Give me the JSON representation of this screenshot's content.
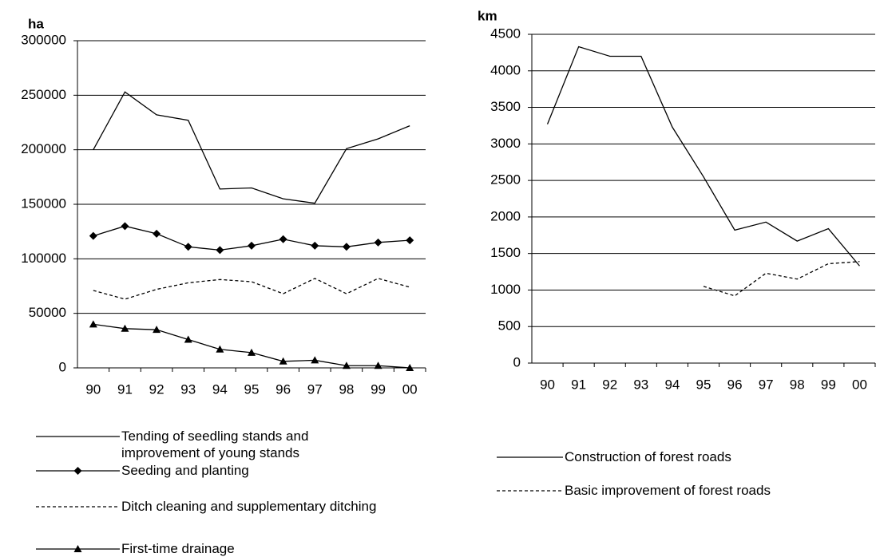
{
  "chart_data": [
    {
      "type": "line",
      "y_label": "ha",
      "categories": [
        "90",
        "91",
        "92",
        "93",
        "94",
        "95",
        "96",
        "97",
        "98",
        "99",
        "00"
      ],
      "ylim": [
        0,
        300000
      ],
      "yticks": [
        0,
        50000,
        100000,
        150000,
        200000,
        250000,
        300000
      ],
      "grid": true,
      "legend": "bottom",
      "series": [
        {
          "name": "Tending of seedling stands and improvement of young stands",
          "color": "#000000",
          "dash": false,
          "values": [
            200000,
            253000,
            232000,
            227000,
            164000,
            165000,
            155000,
            151000,
            201000,
            210000,
            222000
          ]
        },
        {
          "name": "Seeding and planting",
          "color": "#000000",
          "dash": false,
          "marker": "diamond",
          "values": [
            121000,
            130000,
            123000,
            111000,
            108000,
            112000,
            118000,
            112000,
            111000,
            115000,
            117000
          ]
        },
        {
          "name": "Ditch cleaning and supplementary ditching",
          "color": "#000000",
          "dash": true,
          "values": [
            71000,
            63000,
            72000,
            78000,
            81000,
            79000,
            68000,
            82000,
            68000,
            82000,
            74000
          ]
        },
        {
          "name": "First-time drainage",
          "color": "#000000",
          "dash": false,
          "marker": "triangle",
          "values": [
            40000,
            36000,
            35000,
            26000,
            17000,
            14000,
            6000,
            7000,
            2000,
            2000,
            0
          ]
        }
      ]
    },
    {
      "type": "line",
      "y_label": "km",
      "categories": [
        "90",
        "91",
        "92",
        "93",
        "94",
        "95",
        "96",
        "97",
        "98",
        "99",
        "00"
      ],
      "ylim": [
        0,
        4500
      ],
      "yticks": [
        0,
        500,
        1000,
        1500,
        2000,
        2500,
        3000,
        3500,
        4000,
        4500
      ],
      "grid": true,
      "legend": "bottom",
      "series": [
        {
          "name": "Construction of forest roads",
          "color": "#000000",
          "dash": false,
          "values": [
            3270,
            4330,
            4200,
            4200,
            3230,
            2550,
            1820,
            1930,
            1670,
            1840,
            1330
          ]
        },
        {
          "name": "Basic improvement of forest roads",
          "color": "#000000",
          "dash": true,
          "values": [
            null,
            null,
            null,
            null,
            null,
            1050,
            920,
            1230,
            1150,
            1360,
            1390
          ]
        }
      ]
    }
  ]
}
